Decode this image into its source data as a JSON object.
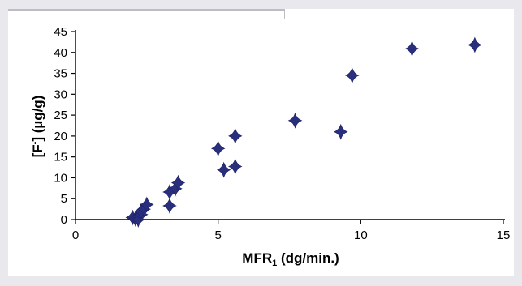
{
  "chart_data": {
    "type": "scatter",
    "title": "",
    "xlabel_main": "MFR",
    "xlabel_sub": "1",
    "xlabel_unit": " (dg/min.)",
    "ylabel_main": "[F",
    "ylabel_sup": "-",
    "ylabel_unit": "] (µg/g)",
    "xlim": [
      0,
      15
    ],
    "ylim": [
      0,
      45
    ],
    "xticks": [
      0,
      5,
      10,
      15
    ],
    "yticks": [
      0,
      5,
      10,
      15,
      20,
      25,
      30,
      35,
      40,
      45
    ],
    "grid": false,
    "legend": "none",
    "marker": "diamond",
    "color": "#2a2f7d",
    "points": [
      {
        "x": 2.0,
        "y": 0.5
      },
      {
        "x": 2.1,
        "y": 0.2
      },
      {
        "x": 2.2,
        "y": 0.8
      },
      {
        "x": 2.2,
        "y": 0.0
      },
      {
        "x": 2.3,
        "y": 1.2
      },
      {
        "x": 2.3,
        "y": 2.0
      },
      {
        "x": 2.4,
        "y": 2.5
      },
      {
        "x": 2.5,
        "y": 3.6
      },
      {
        "x": 3.3,
        "y": 3.3
      },
      {
        "x": 3.3,
        "y": 6.6
      },
      {
        "x": 3.5,
        "y": 7.4
      },
      {
        "x": 3.6,
        "y": 8.8
      },
      {
        "x": 5.0,
        "y": 17.0
      },
      {
        "x": 5.2,
        "y": 11.9
      },
      {
        "x": 5.6,
        "y": 12.7
      },
      {
        "x": 5.6,
        "y": 20.0
      },
      {
        "x": 7.7,
        "y": 23.7
      },
      {
        "x": 9.3,
        "y": 21.0
      },
      {
        "x": 9.7,
        "y": 34.5
      },
      {
        "x": 11.8,
        "y": 40.9
      },
      {
        "x": 14.0,
        "y": 41.8
      }
    ]
  }
}
